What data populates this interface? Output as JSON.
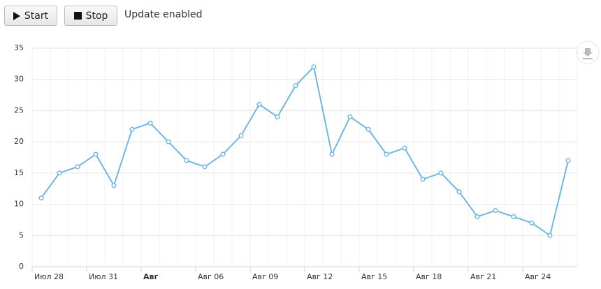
{
  "controls": {
    "start_label": "Start",
    "stop_label": "Stop",
    "status": "Update enabled"
  },
  "chart_data": {
    "type": "line",
    "categories": [
      "Июл 28",
      null,
      null,
      "Июл 31",
      null,
      null,
      "Авг",
      null,
      null,
      "Авг 06",
      null,
      null,
      "Авг 09",
      null,
      null,
      "Авг 12",
      null,
      null,
      "Авг 15",
      null,
      null,
      "Авг 18",
      null,
      null,
      "Авг 21",
      null,
      null,
      "Авг 24",
      null,
      null
    ],
    "series": [
      {
        "color": "#72b7da",
        "values": [
          11,
          15,
          16,
          18,
          13,
          22,
          23,
          20,
          17,
          16,
          18,
          21,
          26,
          24,
          29,
          32,
          18,
          24,
          22,
          18,
          19,
          14,
          15,
          12,
          8,
          9,
          8,
          7,
          5,
          17
        ]
      }
    ],
    "ylim": [
      0,
      35
    ],
    "yticks": [
      0,
      5,
      10,
      15,
      20,
      25,
      30,
      35
    ],
    "grid": true
  }
}
